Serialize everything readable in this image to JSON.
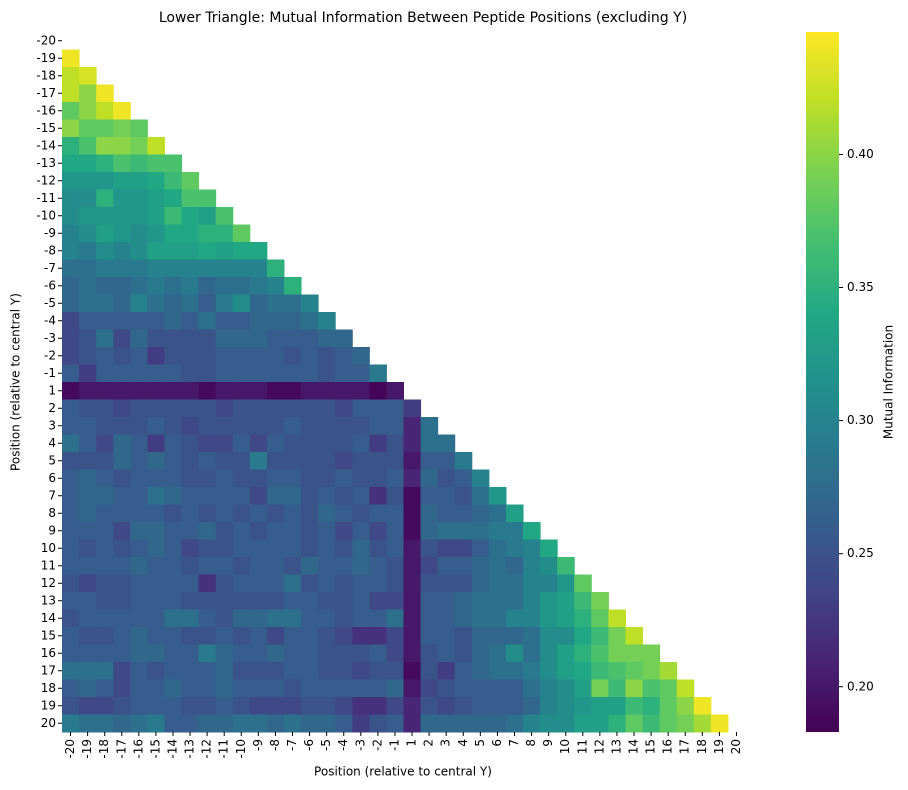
{
  "chart_data": {
    "type": "heatmap",
    "title": "Lower Triangle: Mutual Information Between Peptide Positions (excluding Y)",
    "x_label": "Position (relative to central Y)",
    "y_label": "Position (relative to central Y)",
    "categories": [
      "-20",
      "-19",
      "-18",
      "-17",
      "-16",
      "-15",
      "-14",
      "-13",
      "-12",
      "-11",
      "-10",
      "-9",
      "-8",
      "-7",
      "-6",
      "-5",
      "-4",
      "-3",
      "-2",
      "-1",
      "1",
      "2",
      "3",
      "4",
      "5",
      "6",
      "7",
      "8",
      "9",
      "10",
      "11",
      "12",
      "13",
      "14",
      "15",
      "16",
      "17",
      "18",
      "19",
      "20"
    ],
    "colormap": "viridis",
    "colorbar": {
      "label": "Mutual Information",
      "lim": [
        0.183,
        0.446
      ],
      "ticks": [
        {
          "value": 0.2,
          "label": "0.20"
        },
        {
          "value": 0.25,
          "label": "0.25"
        },
        {
          "value": 0.3,
          "label": "0.30"
        },
        {
          "value": 0.35,
          "label": "0.35"
        },
        {
          "value": 0.4,
          "label": "0.40"
        }
      ]
    },
    "values": [
      [],
      [
        0.44
      ],
      [
        0.42,
        0.43
      ],
      [
        0.42,
        0.4,
        0.44
      ],
      [
        0.38,
        0.4,
        0.42,
        0.44
      ],
      [
        0.4,
        0.38,
        0.38,
        0.39,
        0.38
      ],
      [
        0.35,
        0.37,
        0.4,
        0.4,
        0.39,
        0.42
      ],
      [
        0.34,
        0.34,
        0.35,
        0.37,
        0.36,
        0.37,
        0.37
      ],
      [
        0.32,
        0.32,
        0.32,
        0.33,
        0.33,
        0.34,
        0.36,
        0.38
      ],
      [
        0.31,
        0.31,
        0.35,
        0.32,
        0.32,
        0.33,
        0.34,
        0.37,
        0.37
      ],
      [
        0.31,
        0.32,
        0.32,
        0.32,
        0.32,
        0.33,
        0.36,
        0.34,
        0.33,
        0.37
      ],
      [
        0.3,
        0.31,
        0.33,
        0.32,
        0.31,
        0.32,
        0.34,
        0.34,
        0.35,
        0.35,
        0.38
      ],
      [
        0.3,
        0.29,
        0.31,
        0.3,
        0.31,
        0.33,
        0.33,
        0.33,
        0.34,
        0.33,
        0.34,
        0.34
      ],
      [
        0.28,
        0.28,
        0.29,
        0.29,
        0.29,
        0.3,
        0.3,
        0.3,
        0.3,
        0.3,
        0.3,
        0.3,
        0.35
      ],
      [
        0.27,
        0.28,
        0.27,
        0.27,
        0.28,
        0.29,
        0.28,
        0.29,
        0.27,
        0.28,
        0.28,
        0.29,
        0.3,
        0.35
      ],
      [
        0.27,
        0.28,
        0.28,
        0.27,
        0.3,
        0.28,
        0.27,
        0.28,
        0.26,
        0.29,
        0.31,
        0.27,
        0.28,
        0.28,
        0.3
      ],
      [
        0.24,
        0.26,
        0.26,
        0.26,
        0.26,
        0.26,
        0.27,
        0.26,
        0.28,
        0.26,
        0.26,
        0.27,
        0.27,
        0.27,
        0.28,
        0.3
      ],
      [
        0.24,
        0.25,
        0.28,
        0.24,
        0.27,
        0.25,
        0.25,
        0.25,
        0.25,
        0.27,
        0.27,
        0.27,
        0.26,
        0.26,
        0.26,
        0.27,
        0.27
      ],
      [
        0.24,
        0.25,
        0.26,
        0.25,
        0.26,
        0.23,
        0.25,
        0.25,
        0.25,
        0.26,
        0.26,
        0.26,
        0.26,
        0.25,
        0.26,
        0.25,
        0.26,
        0.27
      ],
      [
        0.26,
        0.23,
        0.26,
        0.26,
        0.26,
        0.26,
        0.26,
        0.25,
        0.25,
        0.26,
        0.26,
        0.26,
        0.26,
        0.26,
        0.26,
        0.25,
        0.26,
        0.26,
        0.29
      ],
      [
        0.19,
        0.2,
        0.2,
        0.2,
        0.2,
        0.2,
        0.2,
        0.2,
        0.19,
        0.2,
        0.2,
        0.2,
        0.19,
        0.19,
        0.2,
        0.2,
        0.2,
        0.2,
        0.185,
        0.2
      ],
      [
        0.26,
        0.25,
        0.25,
        0.24,
        0.25,
        0.25,
        0.25,
        0.25,
        0.25,
        0.24,
        0.25,
        0.25,
        0.25,
        0.25,
        0.25,
        0.25,
        0.24,
        0.26,
        0.26,
        0.26,
        0.23
      ],
      [
        0.26,
        0.26,
        0.25,
        0.25,
        0.25,
        0.26,
        0.25,
        0.24,
        0.25,
        0.25,
        0.25,
        0.25,
        0.25,
        0.26,
        0.25,
        0.25,
        0.25,
        0.25,
        0.26,
        0.26,
        0.21,
        0.28
      ],
      [
        0.28,
        0.26,
        0.24,
        0.27,
        0.26,
        0.23,
        0.26,
        0.25,
        0.24,
        0.24,
        0.26,
        0.24,
        0.26,
        0.25,
        0.25,
        0.25,
        0.25,
        0.26,
        0.23,
        0.25,
        0.21,
        0.28,
        0.28
      ],
      [
        0.25,
        0.25,
        0.25,
        0.27,
        0.26,
        0.27,
        0.26,
        0.25,
        0.26,
        0.25,
        0.25,
        0.29,
        0.25,
        0.25,
        0.25,
        0.25,
        0.24,
        0.25,
        0.25,
        0.25,
        0.2,
        0.26,
        0.26,
        0.29
      ],
      [
        0.26,
        0.27,
        0.26,
        0.25,
        0.26,
        0.26,
        0.26,
        0.25,
        0.25,
        0.26,
        0.25,
        0.25,
        0.26,
        0.26,
        0.25,
        0.25,
        0.26,
        0.25,
        0.25,
        0.26,
        0.21,
        0.27,
        0.25,
        0.26,
        0.3
      ],
      [
        0.26,
        0.27,
        0.27,
        0.26,
        0.26,
        0.28,
        0.27,
        0.26,
        0.26,
        0.26,
        0.26,
        0.24,
        0.27,
        0.27,
        0.25,
        0.26,
        0.25,
        0.26,
        0.22,
        0.25,
        0.19,
        0.26,
        0.26,
        0.25,
        0.28,
        0.32
      ],
      [
        0.26,
        0.27,
        0.26,
        0.26,
        0.26,
        0.26,
        0.25,
        0.26,
        0.25,
        0.26,
        0.25,
        0.26,
        0.25,
        0.26,
        0.25,
        0.27,
        0.26,
        0.25,
        0.26,
        0.26,
        0.19,
        0.27,
        0.26,
        0.26,
        0.27,
        0.28,
        0.33
      ],
      [
        0.26,
        0.26,
        0.26,
        0.24,
        0.27,
        0.27,
        0.26,
        0.26,
        0.27,
        0.25,
        0.26,
        0.25,
        0.26,
        0.26,
        0.25,
        0.26,
        0.24,
        0.26,
        0.24,
        0.26,
        0.19,
        0.27,
        0.28,
        0.28,
        0.28,
        0.29,
        0.29,
        0.34
      ],
      [
        0.26,
        0.25,
        0.26,
        0.25,
        0.26,
        0.27,
        0.26,
        0.24,
        0.25,
        0.25,
        0.26,
        0.26,
        0.26,
        0.26,
        0.25,
        0.26,
        0.25,
        0.27,
        0.25,
        0.26,
        0.2,
        0.25,
        0.24,
        0.24,
        0.26,
        0.28,
        0.29,
        0.3,
        0.34
      ],
      [
        0.26,
        0.26,
        0.26,
        0.26,
        0.27,
        0.26,
        0.26,
        0.25,
        0.26,
        0.26,
        0.25,
        0.26,
        0.26,
        0.25,
        0.27,
        0.26,
        0.26,
        0.27,
        0.26,
        0.25,
        0.2,
        0.24,
        0.26,
        0.26,
        0.27,
        0.28,
        0.27,
        0.3,
        0.31,
        0.36
      ],
      [
        0.25,
        0.24,
        0.25,
        0.25,
        0.26,
        0.26,
        0.26,
        0.26,
        0.22,
        0.25,
        0.26,
        0.26,
        0.26,
        0.28,
        0.25,
        0.26,
        0.25,
        0.26,
        0.26,
        0.25,
        0.2,
        0.25,
        0.25,
        0.25,
        0.27,
        0.28,
        0.28,
        0.3,
        0.3,
        0.32,
        0.38
      ],
      [
        0.26,
        0.26,
        0.25,
        0.25,
        0.26,
        0.26,
        0.26,
        0.25,
        0.25,
        0.25,
        0.25,
        0.25,
        0.25,
        0.26,
        0.26,
        0.25,
        0.25,
        0.26,
        0.24,
        0.24,
        0.2,
        0.26,
        0.26,
        0.27,
        0.28,
        0.28,
        0.28,
        0.3,
        0.32,
        0.33,
        0.36,
        0.39
      ],
      [
        0.25,
        0.26,
        0.26,
        0.26,
        0.26,
        0.26,
        0.28,
        0.28,
        0.26,
        0.25,
        0.27,
        0.27,
        0.28,
        0.28,
        0.26,
        0.26,
        0.25,
        0.26,
        0.26,
        0.28,
        0.2,
        0.26,
        0.26,
        0.27,
        0.28,
        0.28,
        0.3,
        0.3,
        0.32,
        0.33,
        0.35,
        0.38,
        0.42
      ],
      [
        0.26,
        0.25,
        0.25,
        0.26,
        0.27,
        0.26,
        0.26,
        0.25,
        0.25,
        0.26,
        0.25,
        0.26,
        0.24,
        0.26,
        0.26,
        0.25,
        0.24,
        0.22,
        0.22,
        0.24,
        0.2,
        0.26,
        0.26,
        0.25,
        0.27,
        0.27,
        0.27,
        0.28,
        0.31,
        0.31,
        0.34,
        0.36,
        0.39,
        0.42
      ],
      [
        0.26,
        0.26,
        0.26,
        0.26,
        0.27,
        0.27,
        0.26,
        0.26,
        0.29,
        0.27,
        0.26,
        0.26,
        0.27,
        0.26,
        0.26,
        0.25,
        0.25,
        0.25,
        0.26,
        0.24,
        0.2,
        0.25,
        0.26,
        0.25,
        0.27,
        0.28,
        0.31,
        0.28,
        0.31,
        0.33,
        0.35,
        0.37,
        0.39,
        0.39,
        0.39
      ],
      [
        0.28,
        0.28,
        0.28,
        0.24,
        0.26,
        0.25,
        0.26,
        0.26,
        0.26,
        0.27,
        0.25,
        0.25,
        0.25,
        0.26,
        0.26,
        0.25,
        0.25,
        0.24,
        0.25,
        0.25,
        0.19,
        0.25,
        0.23,
        0.26,
        0.27,
        0.28,
        0.28,
        0.29,
        0.31,
        0.33,
        0.34,
        0.36,
        0.37,
        0.38,
        0.39,
        0.41
      ],
      [
        0.26,
        0.27,
        0.26,
        0.24,
        0.26,
        0.26,
        0.27,
        0.26,
        0.26,
        0.27,
        0.26,
        0.26,
        0.26,
        0.25,
        0.26,
        0.26,
        0.26,
        0.26,
        0.26,
        0.27,
        0.2,
        0.24,
        0.25,
        0.26,
        0.26,
        0.26,
        0.26,
        0.28,
        0.3,
        0.31,
        0.33,
        0.39,
        0.36,
        0.4,
        0.37,
        0.38,
        0.42
      ],
      [
        0.25,
        0.24,
        0.24,
        0.25,
        0.26,
        0.26,
        0.26,
        0.25,
        0.25,
        0.26,
        0.25,
        0.24,
        0.24,
        0.24,
        0.25,
        0.25,
        0.24,
        0.22,
        0.22,
        0.24,
        0.21,
        0.25,
        0.24,
        0.25,
        0.26,
        0.26,
        0.26,
        0.27,
        0.3,
        0.31,
        0.32,
        0.33,
        0.33,
        0.36,
        0.35,
        0.38,
        0.4,
        0.44
      ],
      [
        0.29,
        0.28,
        0.28,
        0.27,
        0.28,
        0.29,
        0.26,
        0.26,
        0.27,
        0.27,
        0.28,
        0.28,
        0.27,
        0.28,
        0.27,
        0.27,
        0.26,
        0.23,
        0.25,
        0.26,
        0.21,
        0.27,
        0.27,
        0.27,
        0.27,
        0.27,
        0.28,
        0.3,
        0.31,
        0.31,
        0.33,
        0.33,
        0.35,
        0.38,
        0.36,
        0.38,
        0.39,
        0.41,
        0.44
      ]
    ]
  }
}
